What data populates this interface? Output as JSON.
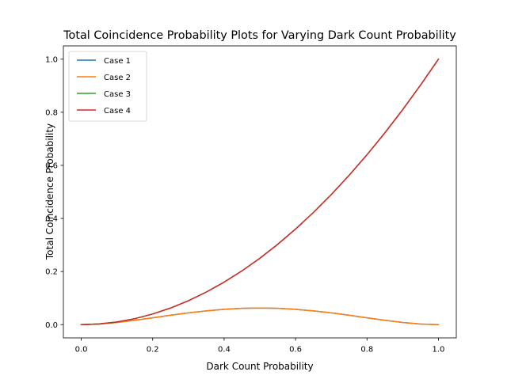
{
  "chart_data": {
    "type": "line",
    "title": "Total Coincidence Probability Plots for Varying Dark Count Probability",
    "xlabel": "Dark Count Probability",
    "ylabel": "Total Coincidence Probability",
    "xlim": [
      -0.05,
      1.05
    ],
    "ylim": [
      -0.05,
      1.05
    ],
    "xticks": [
      0.0,
      0.2,
      0.4,
      0.6,
      0.8,
      1.0
    ],
    "xtick_labels": [
      "0.0",
      "0.2",
      "0.4",
      "0.6",
      "0.8",
      "1.0"
    ],
    "yticks": [
      0.0,
      0.2,
      0.4,
      0.6,
      0.8,
      1.0
    ],
    "ytick_labels": [
      "0.0",
      "0.2",
      "0.4",
      "0.6",
      "0.8",
      "1.0"
    ],
    "grid": false,
    "legend_position": "upper-left",
    "x": [
      0.0,
      0.05,
      0.1,
      0.15,
      0.2,
      0.25,
      0.3,
      0.35,
      0.4,
      0.45,
      0.5,
      0.55,
      0.6,
      0.65,
      0.7,
      0.75,
      0.8,
      0.85,
      0.9,
      0.95,
      1.0
    ],
    "series": [
      {
        "name": "Case 1",
        "color": "#1f77b4",
        "values": [
          0.0,
          0.0023,
          0.0081,
          0.0163,
          0.0256,
          0.0352,
          0.0441,
          0.0517,
          0.0576,
          0.0613,
          0.0625,
          0.0613,
          0.0576,
          0.0517,
          0.0441,
          0.0352,
          0.0256,
          0.0163,
          0.0081,
          0.0023,
          0.0
        ]
      },
      {
        "name": "Case 2",
        "color": "#ff7f0e",
        "values": [
          0.0,
          0.0023,
          0.0081,
          0.0163,
          0.0256,
          0.0352,
          0.0441,
          0.0517,
          0.0576,
          0.0613,
          0.0625,
          0.0613,
          0.0576,
          0.0517,
          0.0441,
          0.0352,
          0.0256,
          0.0163,
          0.0081,
          0.0023,
          0.0
        ]
      },
      {
        "name": "Case 3",
        "color": "#2ca02c",
        "values": [
          0.0,
          0.0025,
          0.01,
          0.0225,
          0.04,
          0.0625,
          0.09,
          0.1225,
          0.16,
          0.2025,
          0.25,
          0.3025,
          0.36,
          0.4225,
          0.49,
          0.5625,
          0.64,
          0.7225,
          0.81,
          0.9025,
          1.0
        ]
      },
      {
        "name": "Case 4",
        "color": "#d62728",
        "values": [
          0.0,
          0.0025,
          0.01,
          0.0225,
          0.04,
          0.0625,
          0.09,
          0.1225,
          0.16,
          0.2025,
          0.25,
          0.3025,
          0.36,
          0.4225,
          0.49,
          0.5625,
          0.64,
          0.7225,
          0.81,
          0.9025,
          1.0
        ]
      }
    ]
  }
}
